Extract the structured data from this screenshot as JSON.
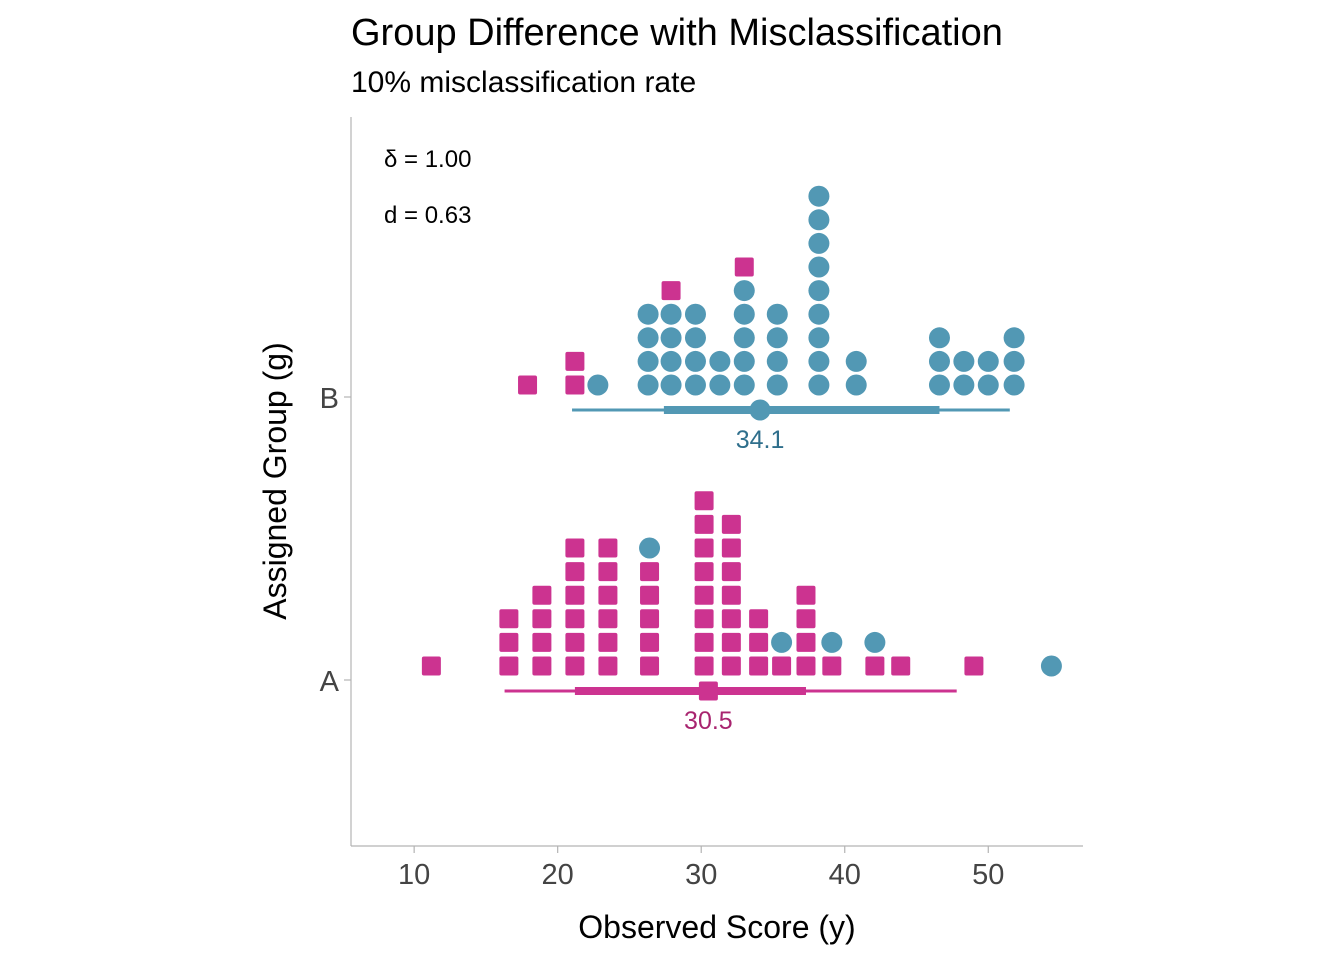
{
  "chart_data": {
    "type": "scatter",
    "subtype": "dot-plot",
    "title": "Group Difference with Misclassification",
    "subtitle": "10% misclassification rate",
    "xlabel": "Observed Score (y)",
    "ylabel": "Assigned Group (g)",
    "xlim": [
      5.6,
      56.6
    ],
    "x_ticks": [
      10,
      20,
      30,
      40,
      50
    ],
    "y_categories": [
      "A",
      "B"
    ],
    "grid": false,
    "annotations": [
      "δ = 1.00",
      "d = 0.63"
    ],
    "true_group_colors": {
      "A": "#cc3390",
      "B": "#5298b4"
    },
    "true_group_shapes": {
      "A": "square",
      "B": "circle"
    },
    "mean_label_colors": {
      "A": "#a8246f",
      "B": "#2f6f8c"
    },
    "series": [
      {
        "assigned_group": "A",
        "mean": 30.5,
        "mean_label": "30.5",
        "interval_outer": [
          16.3,
          47.8
        ],
        "interval_inner": [
          21.2,
          37.3
        ],
        "dot_stacks": [
          {
            "x": 11.2,
            "true_groups": [
              "A"
            ]
          },
          {
            "x": 16.6,
            "true_groups": [
              "A",
              "A",
              "A"
            ]
          },
          {
            "x": 18.9,
            "true_groups": [
              "A",
              "A",
              "A",
              "A"
            ]
          },
          {
            "x": 21.2,
            "true_groups": [
              "A",
              "A",
              "A",
              "A",
              "A",
              "A"
            ]
          },
          {
            "x": 23.5,
            "true_groups": [
              "A",
              "A",
              "A",
              "A",
              "A",
              "A"
            ]
          },
          {
            "x": 26.4,
            "true_groups": [
              "A",
              "A",
              "A",
              "A",
              "A",
              "B"
            ]
          },
          {
            "x": 30.2,
            "true_groups": [
              "A",
              "A",
              "A",
              "A",
              "A",
              "A",
              "A",
              "A"
            ]
          },
          {
            "x": 32.1,
            "true_groups": [
              "A",
              "A",
              "A",
              "A",
              "A",
              "A",
              "A"
            ]
          },
          {
            "x": 34.0,
            "true_groups": [
              "A",
              "A",
              "A"
            ]
          },
          {
            "x": 35.6,
            "true_groups": [
              "A",
              "B"
            ]
          },
          {
            "x": 37.3,
            "true_groups": [
              "A",
              "A",
              "A",
              "A"
            ]
          },
          {
            "x": 39.1,
            "true_groups": [
              "A",
              "B"
            ]
          },
          {
            "x": 42.1,
            "true_groups": [
              "A",
              "B"
            ]
          },
          {
            "x": 43.9,
            "true_groups": [
              "A"
            ]
          },
          {
            "x": 49.0,
            "true_groups": [
              "A"
            ]
          },
          {
            "x": 54.4,
            "true_groups": [
              "B"
            ]
          }
        ]
      },
      {
        "assigned_group": "B",
        "mean": 34.1,
        "mean_label": "34.1",
        "interval_outer": [
          21.0,
          51.5
        ],
        "interval_inner": [
          27.4,
          46.6
        ],
        "dot_stacks": [
          {
            "x": 17.9,
            "true_groups": [
              "A"
            ]
          },
          {
            "x": 21.2,
            "true_groups": [
              "A",
              "A"
            ]
          },
          {
            "x": 22.8,
            "true_groups": [
              "B"
            ]
          },
          {
            "x": 26.3,
            "true_groups": [
              "B",
              "B",
              "B",
              "B"
            ]
          },
          {
            "x": 27.9,
            "true_groups": [
              "B",
              "B",
              "B",
              "B",
              "A"
            ]
          },
          {
            "x": 29.6,
            "true_groups": [
              "B",
              "B",
              "B",
              "B"
            ]
          },
          {
            "x": 31.3,
            "true_groups": [
              "B",
              "B"
            ]
          },
          {
            "x": 33.0,
            "true_groups": [
              "B",
              "B",
              "B",
              "B",
              "B",
              "A"
            ]
          },
          {
            "x": 35.3,
            "true_groups": [
              "B",
              "B",
              "B",
              "B"
            ]
          },
          {
            "x": 38.2,
            "true_groups": [
              "B",
              "B",
              "B",
              "B",
              "B",
              "B",
              "B",
              "B",
              "B"
            ]
          },
          {
            "x": 40.8,
            "true_groups": [
              "B",
              "B"
            ]
          },
          {
            "x": 46.6,
            "true_groups": [
              "B",
              "B",
              "B"
            ]
          },
          {
            "x": 48.3,
            "true_groups": [
              "B",
              "B"
            ]
          },
          {
            "x": 50.0,
            "true_groups": [
              "B",
              "B"
            ]
          },
          {
            "x": 51.8,
            "true_groups": [
              "B",
              "B",
              "B"
            ]
          }
        ]
      }
    ]
  }
}
